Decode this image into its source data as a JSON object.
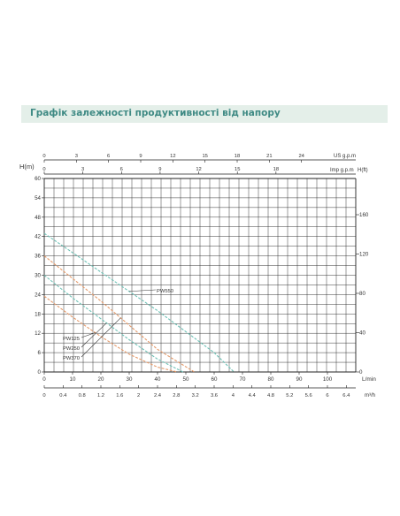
{
  "header": {
    "title": "Графік залежності продуктивності від напору"
  },
  "chart_data": {
    "type": "line",
    "title": "",
    "colors": {
      "grid": "#222222",
      "series_a": "#e59a6a",
      "series_b": "#6ec1b6"
    },
    "xlabel": "L/min",
    "ylabel": "H(m)",
    "y2label": "H(ft)",
    "secondary_x_label_1": "US g.p.m",
    "secondary_x_label_2": "Imp g.p.m",
    "secondary_x_label_3": "m³/h",
    "xlim": [
      0,
      110
    ],
    "ylim": [
      0,
      60
    ],
    "x_ticks": [
      "0",
      "10",
      "20",
      "30",
      "40",
      "50",
      "60",
      "70",
      "80",
      "90",
      "100"
    ],
    "y_ticks": [
      "0",
      "6",
      "12",
      "18",
      "24",
      "30",
      "36",
      "42",
      "48",
      "54",
      "60"
    ],
    "y2_ticks": [
      "0",
      "40",
      "80",
      "120",
      "160"
    ],
    "us_gpm_ticks": [
      "0",
      "3",
      "6",
      "9",
      "12",
      "15",
      "18",
      "21",
      "24"
    ],
    "imp_gpm_ticks": [
      "0",
      "3",
      "6",
      "9",
      "12",
      "15",
      "18"
    ],
    "m3h_ticks": [
      "0",
      "0.4",
      "0.8",
      "1.2",
      "1.6",
      "2",
      "2.4",
      "2.8",
      "3.2",
      "3.6",
      "4",
      "4.4",
      "4.8",
      "5.2",
      "5.6",
      "6",
      "6.4"
    ],
    "series": [
      {
        "name": "PW125",
        "color": "orange",
        "x": [
          0,
          10,
          20,
          30,
          40,
          47
        ],
        "y": [
          23.5,
          17,
          11,
          5.5,
          1.5,
          0
        ]
      },
      {
        "name": "PW250",
        "color": "teal",
        "x": [
          0,
          10,
          20,
          30,
          40,
          49
        ],
        "y": [
          30,
          23,
          16.5,
          10,
          4,
          0
        ]
      },
      {
        "name": "PW370",
        "color": "orange",
        "x": [
          0,
          10,
          20,
          30,
          40,
          53
        ],
        "y": [
          36,
          29,
          22,
          14.5,
          7,
          0
        ]
      },
      {
        "name": "PW550",
        "color": "teal",
        "x": [
          0,
          10,
          20,
          30,
          40,
          50,
          60,
          67
        ],
        "y": [
          43,
          37,
          31,
          25,
          19,
          12.5,
          6,
          0
        ]
      }
    ]
  }
}
